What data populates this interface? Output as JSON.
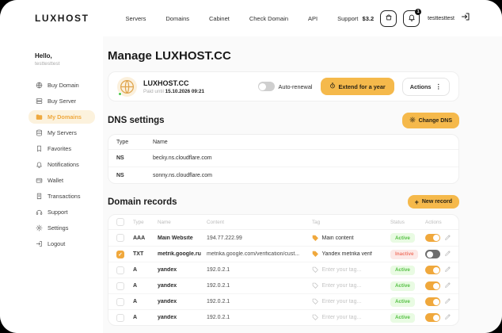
{
  "topbar": {
    "logo": "LUXHOST",
    "nav": [
      "Servers",
      "Domains",
      "Cabinet",
      "Check Domain",
      "API",
      "Support"
    ],
    "balance": "$3.2",
    "notification_badge": "1",
    "username": "testtesttest"
  },
  "sidebar": {
    "greeting": "Hello,",
    "username": "testtesttest",
    "items": [
      {
        "label": "Buy Domain",
        "icon": "globe",
        "active": false
      },
      {
        "label": "Buy Server",
        "icon": "server",
        "active": false
      },
      {
        "label": "My Domains",
        "icon": "folder",
        "active": true
      },
      {
        "label": "My Servers",
        "icon": "database",
        "active": false
      },
      {
        "label": "Favorites",
        "icon": "bookmark",
        "active": false
      },
      {
        "label": "Notifications",
        "icon": "bell",
        "active": false
      },
      {
        "label": "Wallet",
        "icon": "wallet",
        "active": false
      },
      {
        "label": "Transactions",
        "icon": "receipt",
        "active": false
      },
      {
        "label": "Support",
        "icon": "headset",
        "active": false
      },
      {
        "label": "Settings",
        "icon": "gear",
        "active": false
      },
      {
        "label": "Logout",
        "icon": "logout",
        "active": false
      }
    ]
  },
  "main": {
    "title": "Manage LUXHOST.CC",
    "domain_card": {
      "name": "LUXHOST.CC",
      "paid_label": "Paid until",
      "paid_date": "15.10.2026 09:21",
      "auto_renewal_label": "Auto-renewal",
      "auto_renewal_on": false,
      "extend_button": "Extend for a year",
      "actions_button": "Actions"
    },
    "dns": {
      "title": "DNS settings",
      "change_button": "Change DNS",
      "columns": [
        "Type",
        "Name"
      ],
      "rows": [
        {
          "type": "NS",
          "name": "becky.ns.cloudflare.com"
        },
        {
          "type": "NS",
          "name": "sonny.ns.cloudflare.com"
        }
      ]
    },
    "records": {
      "title": "Domain records",
      "new_button": "New record",
      "columns": [
        "Type",
        "Name",
        "Content",
        "Tag",
        "Status",
        "Actions"
      ],
      "tag_placeholder": "Enter your tag...",
      "rows": [
        {
          "checked": false,
          "type": "AAA",
          "name": "Main Website",
          "content": "194.77.222.99",
          "tag": "Main content",
          "tag_is_placeholder": false,
          "status": "Active",
          "toggle_on": true
        },
        {
          "checked": true,
          "type": "TXT",
          "name": "metrik.google.ru",
          "content": "metrika.google.com/verification/cust...",
          "tag": "Yandex metrika verif",
          "tag_is_placeholder": false,
          "status": "Inactive",
          "toggle_on": false
        },
        {
          "checked": false,
          "type": "A",
          "name": "yandex",
          "content": "192.0.2.1",
          "tag": "Enter your tag...",
          "tag_is_placeholder": true,
          "status": "Active",
          "toggle_on": true
        },
        {
          "checked": false,
          "type": "A",
          "name": "yandex",
          "content": "192.0.2.1",
          "tag": "Enter your tag...",
          "tag_is_placeholder": true,
          "status": "Active",
          "toggle_on": true
        },
        {
          "checked": false,
          "type": "A",
          "name": "yandex",
          "content": "192.0.2.1",
          "tag": "Enter your tag...",
          "tag_is_placeholder": true,
          "status": "Active",
          "toggle_on": true
        },
        {
          "checked": false,
          "type": "A",
          "name": "yandex",
          "content": "192.0.2.1",
          "tag": "Enter your tag...",
          "tag_is_placeholder": true,
          "status": "Active",
          "toggle_on": true
        }
      ]
    }
  },
  "colors": {
    "accent": "#F5B94B",
    "toggle_on": "#F0A83C",
    "active_badge_bg": "#E9FBE3",
    "active_badge_text": "#56C045",
    "inactive_badge_bg": "#FCE9E7",
    "inactive_badge_text": "#F07A6A",
    "sidebar_active_bg": "#FCF2DD",
    "main_bg": "#FAFAFA"
  }
}
